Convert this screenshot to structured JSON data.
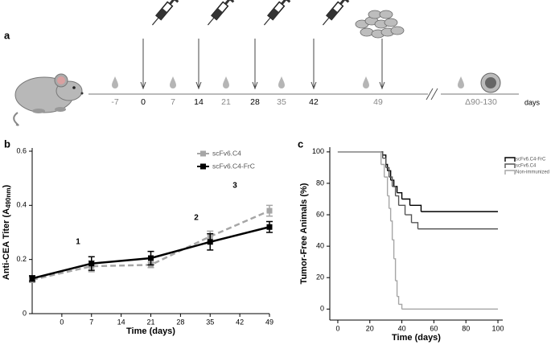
{
  "timeline": {
    "label": "a",
    "unit": "days",
    "ticks": [
      {
        "text": "-7",
        "kind": "blood"
      },
      {
        "text": "0",
        "kind": "injection"
      },
      {
        "text": "7",
        "kind": "blood"
      },
      {
        "text": "14",
        "kind": "injection"
      },
      {
        "text": "21",
        "kind": "blood"
      },
      {
        "text": "28",
        "kind": "injection"
      },
      {
        "text": "35",
        "kind": "blood"
      },
      {
        "text": "42",
        "kind": "injection"
      },
      {
        "text": "49",
        "kind": "challenge"
      },
      {
        "text": "Δ90-130",
        "kind": "tumor"
      }
    ]
  },
  "chart_data": [
    {
      "type": "line",
      "label": "b",
      "xlabel": "Time (days)",
      "ylabel": {
        "text": "Anti-CEA Titer (A",
        "subscript": "490nm",
        "suffix": ")"
      },
      "x": [
        -7,
        7,
        21,
        35,
        49
      ],
      "xlim": [
        -7,
        49
      ],
      "xticks": [
        0,
        7,
        14,
        21,
        28,
        35,
        42,
        49
      ],
      "ylim": [
        0,
        0.6
      ],
      "yticks": [
        0,
        0.2,
        0.4,
        0.6
      ],
      "annotations": [
        "1",
        "2",
        "3"
      ],
      "series": [
        {
          "name": "scFv6.C4",
          "color": "#a6a6a6",
          "dashed": true,
          "values": [
            0.125,
            0.175,
            0.18,
            0.285,
            0.38
          ],
          "errors": [
            0.01,
            0.02,
            0.01,
            0.02,
            0.02
          ]
        },
        {
          "name": "scFv6.C4-FrC",
          "color": "#000000",
          "dashed": false,
          "values": [
            0.13,
            0.185,
            0.205,
            0.265,
            0.32
          ],
          "errors": [
            0.01,
            0.025,
            0.025,
            0.03,
            0.02
          ]
        }
      ]
    },
    {
      "type": "step",
      "label": "c",
      "xlabel": "Time (days)",
      "ylabel": "Tumor-Free Animals (%)",
      "xlim": [
        -5,
        103
      ],
      "xticks": [
        0,
        20,
        40,
        60,
        80,
        100
      ],
      "ylim": [
        -7,
        103
      ],
      "yticks": [
        0,
        20,
        40,
        60,
        80,
        100
      ],
      "series": [
        {
          "name": "scFv6.C4-FrC",
          "color": "#000000",
          "x": [
            0,
            28,
            30,
            31,
            33,
            35,
            37,
            40,
            45,
            52,
            100
          ],
          "values": [
            100,
            98,
            92,
            88,
            82,
            78,
            74,
            70,
            66,
            62,
            62
          ]
        },
        {
          "name": "scFv6.C4",
          "color": "#555555",
          "x": [
            0,
            28,
            30,
            32,
            34,
            36,
            38,
            42,
            46,
            50,
            100
          ],
          "values": [
            100,
            96,
            90,
            84,
            78,
            72,
            66,
            60,
            55,
            51,
            51
          ]
        },
        {
          "name": "Non-immunized",
          "color": "#a6a6a6",
          "x": [
            0,
            27,
            29,
            31,
            32,
            33,
            34,
            35,
            36,
            37,
            38,
            40,
            100
          ],
          "values": [
            100,
            92,
            84,
            72,
            64,
            56,
            44,
            32,
            18,
            8,
            3,
            0,
            0
          ]
        }
      ]
    }
  ]
}
